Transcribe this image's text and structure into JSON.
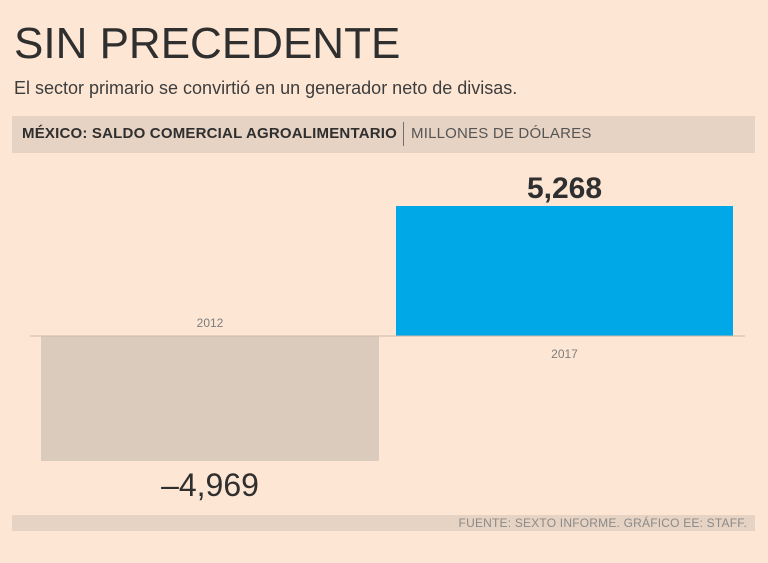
{
  "title": "SIN PRECEDENTE",
  "subtitle": "El sector primario se convirtió en un generador neto de divisas.",
  "header": {
    "lead": "MÉXICO: SALDO COMERCIAL AGROALIMENTARIO",
    "unit": "MILLONES DE DÓLARES"
  },
  "source": "FUENTE: SEXTO INFORME. GRÁFICO EE: STAFF.",
  "colors": {
    "positive": "#00a8e8",
    "negative": "#dacbbd",
    "background": "#fde6d3",
    "band": "#e7d3c3"
  },
  "chart_data": {
    "type": "bar",
    "title": "MÉXICO: SALDO COMERCIAL AGROALIMENTARIO",
    "ylabel": "MILLONES DE DÓLARES",
    "xlabel": "",
    "categories": [
      "2012",
      "2017"
    ],
    "values": [
      -4969,
      5268
    ],
    "value_labels": [
      "–4,969",
      "5,268"
    ],
    "ylim": [
      -4969,
      5268
    ],
    "grid": false
  }
}
